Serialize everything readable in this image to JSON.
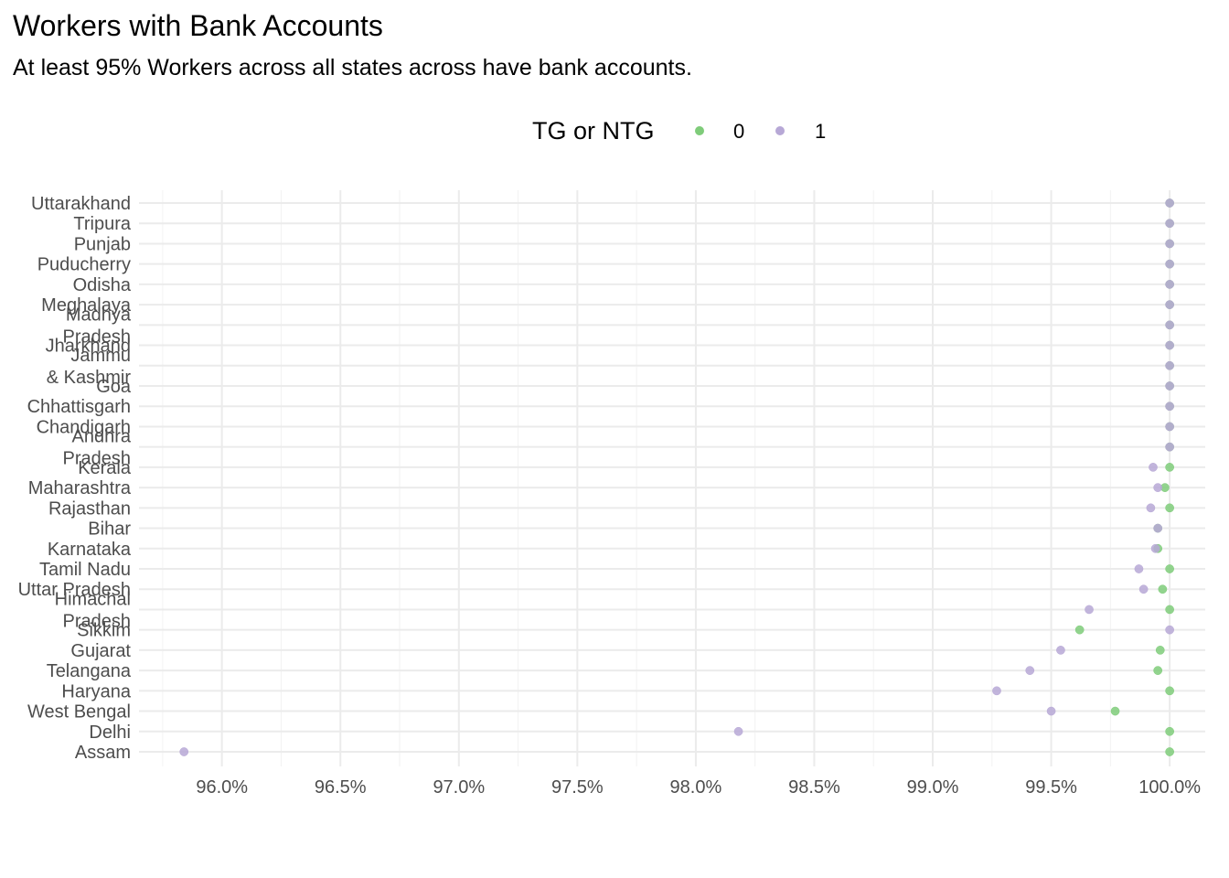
{
  "title": "Workers with Bank Accounts",
  "subtitle": "At least 95% Workers across all states across have bank accounts.",
  "legend": {
    "title": "TG or NTG",
    "items": [
      {
        "label": "0",
        "color": "#7fcc7a"
      },
      {
        "label": "1",
        "color": "#b7a8d6"
      }
    ]
  },
  "chart_data": {
    "type": "scatter",
    "xlim": [
      95.65,
      100.15
    ],
    "x_ticks": [
      "96.0%",
      "96.5%",
      "97.0%",
      "97.5%",
      "98.0%",
      "98.5%",
      "99.0%",
      "99.5%",
      "100.0%"
    ],
    "x_tick_values": [
      96.0,
      96.5,
      97.0,
      97.5,
      98.0,
      98.5,
      99.0,
      99.5,
      100.0
    ],
    "grid": true,
    "legend_position": "top",
    "categories": [
      "Assam",
      "Delhi",
      "West Bengal",
      "Haryana",
      "Telangana",
      "Gujarat",
      "Sikkim",
      "Himachal Pradesh",
      "Uttar Pradesh",
      "Tamil Nadu",
      "Karnataka",
      "Bihar",
      "Rajasthan",
      "Maharashtra",
      "Kerala",
      "Andhra Pradesh",
      "Chandigarh",
      "Chhattisgarh",
      "Goa",
      "Jammu & Kashmir",
      "Jharkhand",
      "Madhya Pradesh",
      "Meghalaya",
      "Odisha",
      "Puducherry",
      "Punjab",
      "Tripura",
      "Uttarakhand"
    ],
    "series": [
      {
        "name": "0",
        "color": "#7fcc7a",
        "values": [
          100.0,
          100.0,
          99.77,
          100.0,
          99.95,
          99.96,
          99.62,
          100.0,
          99.97,
          100.0,
          99.95,
          99.95,
          100.0,
          99.98,
          100.0,
          100.0,
          100.0,
          100.0,
          100.0,
          100.0,
          100.0,
          100.0,
          100.0,
          100.0,
          100.0,
          100.0,
          100.0,
          100.0
        ]
      },
      {
        "name": "1",
        "color": "#b7a8d6",
        "values": [
          95.84,
          98.18,
          99.5,
          99.27,
          99.41,
          99.54,
          100.0,
          99.66,
          99.89,
          99.87,
          99.94,
          99.95,
          99.92,
          99.95,
          99.93,
          100.0,
          100.0,
          100.0,
          100.0,
          100.0,
          100.0,
          100.0,
          100.0,
          100.0,
          100.0,
          100.0,
          100.0,
          100.0
        ]
      }
    ]
  }
}
